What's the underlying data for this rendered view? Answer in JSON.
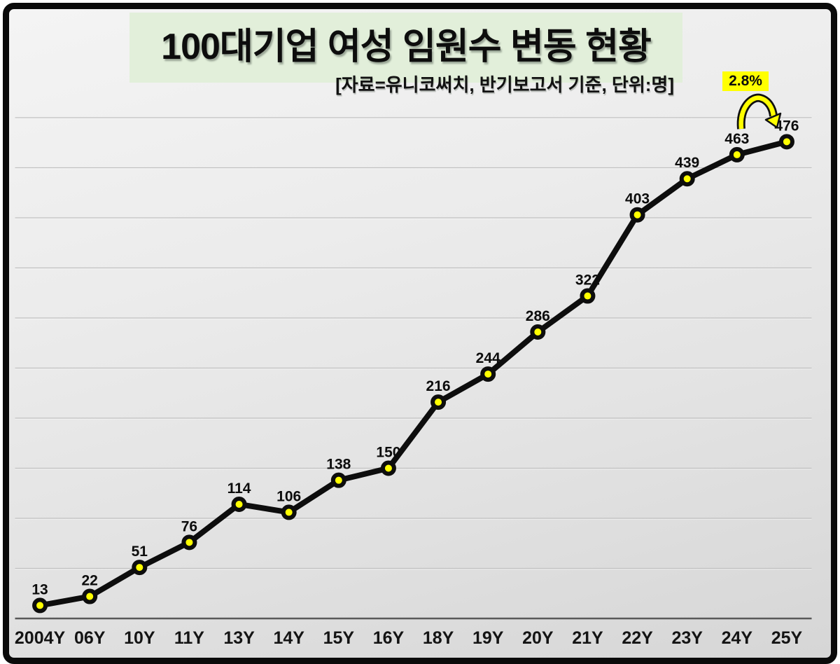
{
  "title": {
    "text": "100대기업 여성 임원수 변동 현황",
    "subtitle": "[자료=유니코써치, 반기보고서 기준, 단위:명]"
  },
  "annotation": {
    "label": "2.8%"
  },
  "chart_data": {
    "type": "line",
    "title": "100대기업 여성 임원수 변동 현황",
    "subtitle": "[자료=유니코써치, 반기보고서 기준, 단위:명]",
    "categories": [
      "2004Y",
      "06Y",
      "10Y",
      "11Y",
      "13Y",
      "14Y",
      "15Y",
      "16Y",
      "18Y",
      "19Y",
      "20Y",
      "21Y",
      "22Y",
      "23Y",
      "24Y",
      "25Y"
    ],
    "values": [
      13,
      22,
      51,
      76,
      114,
      106,
      138,
      150,
      216,
      244,
      286,
      322,
      403,
      439,
      463,
      476
    ],
    "point_labels": [
      "13",
      "22",
      "51",
      "76",
      "114",
      "106",
      "138",
      "150",
      "216",
      "244",
      "286",
      "322",
      "403",
      "439",
      "463",
      "476"
    ],
    "xlabel": "",
    "ylabel": "",
    "ylim": [
      0,
      500
    ],
    "grid_step": 50,
    "grid": true,
    "legend": "none",
    "annotations": [
      {
        "text": "2.8%",
        "target_category": "25Y",
        "target_value": 476
      }
    ],
    "colors": {
      "line": "#0d0d0d",
      "marker_fill": "#ffff00",
      "marker_stroke": "#0d0d0d",
      "gridline": "#bcbcbc",
      "axis": "#595959",
      "title_bg": "#e2efda",
      "annotation_bg": "#ffff00",
      "background": "#e6e6e6",
      "border": "#0a0a0a"
    }
  }
}
